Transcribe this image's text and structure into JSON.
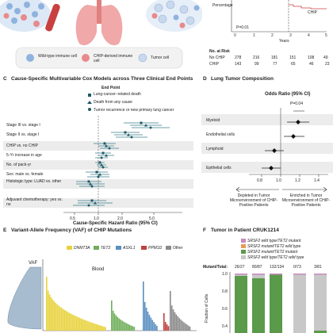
{
  "panelA": {
    "legend": {
      "wildtype": "Wild-type immune cell",
      "chip": "CHIP-derived immune cell",
      "tumor": "Tumor cell"
    },
    "colors": {
      "wildtype": "#8fb3de",
      "chip": "#e88a8c",
      "tumor": "#c8d9ee",
      "lung": "#f0a8a8",
      "tube": "#c94040"
    }
  },
  "panelB": {
    "ylabel": "Percentage",
    "xlabel": "Years",
    "p_value": "P=0.01",
    "series_label": "CHIP",
    "xticks": [
      "0",
      "1",
      "2",
      "3",
      "4",
      "5"
    ],
    "risk_header": "No. at Risk",
    "risk_rows": [
      {
        "label": "No CHIP",
        "values": [
          "278",
          "216",
          "181",
          "151",
          "108",
          "49"
        ]
      },
      {
        "label": "CHIP",
        "values": [
          "143",
          "99",
          "77",
          "65",
          "46",
          "23"
        ]
      }
    ]
  },
  "panelC": {
    "letter": "C",
    "title": "Cause-Specific Multivariable Cox Models across Three Clinical End Points",
    "legend_title": "End Point",
    "legend": [
      {
        "label": "Lung-cancer–related death",
        "marker": "square"
      },
      {
        "label": "Death from any cause",
        "marker": "triangle"
      },
      {
        "label": "Tumor recurrence or new primary lung cancer",
        "marker": "circle"
      }
    ],
    "rows": [
      "Stage III vs. stage I",
      "Stage II vs. stage I",
      "CHIP vs. no CHIP",
      "5-Yr increase in age",
      "No. of pack-yr",
      "Sex: male vs. female",
      "Histologic type: LUAD vs. other",
      "Adjuvant chemotherapy: yes vs. no"
    ],
    "xticks": [
      "0.5",
      "1.0",
      "2.0",
      "5.0"
    ],
    "xlabel": "Cause-Specific Hazard Ratio (95% CI)",
    "color": "#3a7f8c"
  },
  "panelD": {
    "letter": "D",
    "title": "Lung Tumor Composition",
    "axis_title": "Odds Ratio (95% CI)",
    "p_value": "P=0.04",
    "rows": [
      "Myeloid",
      "Endothelial cells",
      "Lymphoid",
      "Epithelial cells"
    ],
    "xticks": [
      "0.8",
      "1.0",
      "1.2",
      "1.4"
    ],
    "left_note": "Depleted in Tumor Microenvironment of CHIP-Positive Patients",
    "right_note": "Enriched in Tumor Microenvironment of CHIP-Positive Patients"
  },
  "panelE": {
    "letter": "E",
    "title": "Variant-Allele Frequency (VAF) of CHIP Mutations",
    "legend": [
      {
        "label": "DNMT3A",
        "color": "#e8d23c"
      },
      {
        "label": "TET2",
        "color": "#6fae5a"
      },
      {
        "label": "ASXL1",
        "color": "#5a8fc0"
      },
      {
        "label": "PPM1D",
        "color": "#c04040"
      },
      {
        "label": "Other",
        "color": "#8a8a8a"
      }
    ],
    "vaf_label": "VAF",
    "blood_label": "Blood"
  },
  "panelF": {
    "letter": "F",
    "title": "Tumor in Patient CRUK1214",
    "legend": [
      {
        "label": "SRSF2 wild type/TET2 mutant",
        "color": "#c98abf"
      },
      {
        "label": "SRSF2 mutant/TET2 wild type",
        "color": "#e89a5a"
      },
      {
        "label": "SRSF2 mutant/TET2 mutant",
        "color": "#5a9a4a"
      },
      {
        "label": "SRSF2 wild type/TET2 wild type",
        "color": "#c8c8c8"
      }
    ],
    "mutant_total_label": "Mutant/Total:",
    "counts": [
      "26/27",
      "80/87",
      "132/134",
      "0/73",
      "3/81"
    ],
    "ylabel": "Fraction of Cells",
    "yticks": [
      "0.0",
      "0.2",
      "0.4",
      "0.6",
      "0.8",
      "1.0"
    ]
  }
}
